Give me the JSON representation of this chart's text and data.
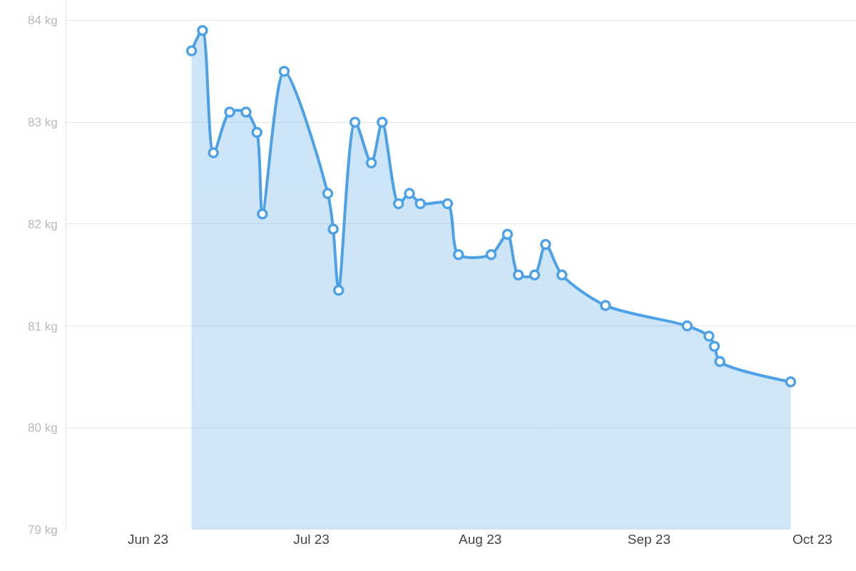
{
  "chart_data": {
    "type": "area",
    "x": [
      "2023-06-09",
      "2023-06-11",
      "2023-06-13",
      "2023-06-16",
      "2023-06-19",
      "2023-06-21",
      "2023-06-22",
      "2023-06-26",
      "2023-07-04",
      "2023-07-05",
      "2023-07-06",
      "2023-07-09",
      "2023-07-12",
      "2023-07-14",
      "2023-07-17",
      "2023-07-19",
      "2023-07-21",
      "2023-07-26",
      "2023-07-28",
      "2023-08-03",
      "2023-08-06",
      "2023-08-08",
      "2023-08-11",
      "2023-08-13",
      "2023-08-16",
      "2023-08-24",
      "2023-09-08",
      "2023-09-12",
      "2023-09-13",
      "2023-09-14",
      "2023-09-27"
    ],
    "series": [
      {
        "color": "#4da1e6",
        "values": [
          83.7,
          83.9,
          82.7,
          83.1,
          83.1,
          82.9,
          82.1,
          83.5,
          82.3,
          81.95,
          81.35,
          83.0,
          82.6,
          83.0,
          82.2,
          82.3,
          82.2,
          82.2,
          81.7,
          81.7,
          81.9,
          81.5,
          81.5,
          81.8,
          81.5,
          81.2,
          81.0,
          80.9,
          80.8,
          80.65,
          80.45
        ]
      }
    ],
    "xlim": [
      "2023-05-17",
      "2023-10-09"
    ],
    "xticks": [
      {
        "value": "2023-06-01",
        "label": "Jun 23"
      },
      {
        "value": "2023-07-01",
        "label": "Jul 23"
      },
      {
        "value": "2023-08-01",
        "label": "Aug 23"
      },
      {
        "value": "2023-09-01",
        "label": "Sep 23"
      },
      {
        "value": "2023-10-01",
        "label": "Oct 23"
      }
    ],
    "ylim": [
      79,
      84.2
    ],
    "yticks": [
      {
        "value": 79,
        "label": "79 kg"
      },
      {
        "value": 80,
        "label": "80 kg"
      },
      {
        "value": 81,
        "label": "81 kg"
      },
      {
        "value": 82,
        "label": "82 kg"
      },
      {
        "value": 83,
        "label": "83 kg"
      },
      {
        "value": 84,
        "label": "84 kg"
      }
    ],
    "grid": "y",
    "marker": "circle",
    "line_style": "solid"
  }
}
